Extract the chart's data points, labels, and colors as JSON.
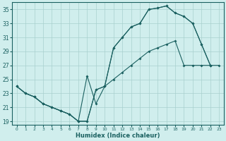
{
  "xlabel": "Humidex (Indice chaleur)",
  "background_color": "#d0eeed",
  "grid_color": "#a8d0ce",
  "line_color": "#1a6060",
  "ylim": [
    18.5,
    36
  ],
  "xlim": [
    -0.5,
    23.5
  ],
  "yticks": [
    19,
    21,
    23,
    25,
    27,
    29,
    31,
    33,
    35
  ],
  "xticks": [
    0,
    1,
    2,
    3,
    4,
    5,
    6,
    7,
    8,
    9,
    10,
    11,
    12,
    13,
    14,
    15,
    16,
    17,
    18,
    19,
    20,
    21,
    22,
    23
  ],
  "line1_x": [
    0,
    1,
    2,
    3,
    4,
    5,
    6,
    7,
    8,
    9,
    10,
    11,
    12,
    13,
    14,
    15,
    16,
    17,
    18,
    19,
    20,
    21,
    22
  ],
  "line1_y": [
    24.0,
    23.0,
    22.5,
    21.5,
    21.0,
    20.5,
    20.0,
    19.0,
    25.5,
    21.5,
    24.0,
    29.5,
    31.0,
    32.5,
    33.0,
    35.0,
    35.2,
    35.5,
    34.5,
    34.0,
    33.0,
    30.0,
    27.0
  ],
  "line2_x": [
    0,
    1,
    2,
    3,
    4,
    5,
    6,
    7,
    8,
    9,
    10,
    11,
    12,
    13,
    14,
    15,
    16,
    17,
    18,
    19,
    20,
    21,
    22
  ],
  "line2_y": [
    24.0,
    23.0,
    22.5,
    21.5,
    21.0,
    20.5,
    20.0,
    19.0,
    19.0,
    23.5,
    24.0,
    29.5,
    31.0,
    32.5,
    33.0,
    35.0,
    35.2,
    35.5,
    34.5,
    34.0,
    33.0,
    30.0,
    27.0
  ],
  "line3_x": [
    0,
    1,
    2,
    3,
    4,
    5,
    6,
    7,
    8,
    9,
    10,
    11,
    12,
    13,
    14,
    15,
    16,
    17,
    18,
    19,
    20,
    21,
    22,
    23
  ],
  "line3_y": [
    24.0,
    23.0,
    22.5,
    21.5,
    21.0,
    20.5,
    20.0,
    19.0,
    19.0,
    23.5,
    24.0,
    25.0,
    26.0,
    27.0,
    28.0,
    29.0,
    29.5,
    30.0,
    30.5,
    27.0,
    27.0,
    27.0,
    27.0,
    27.0
  ]
}
